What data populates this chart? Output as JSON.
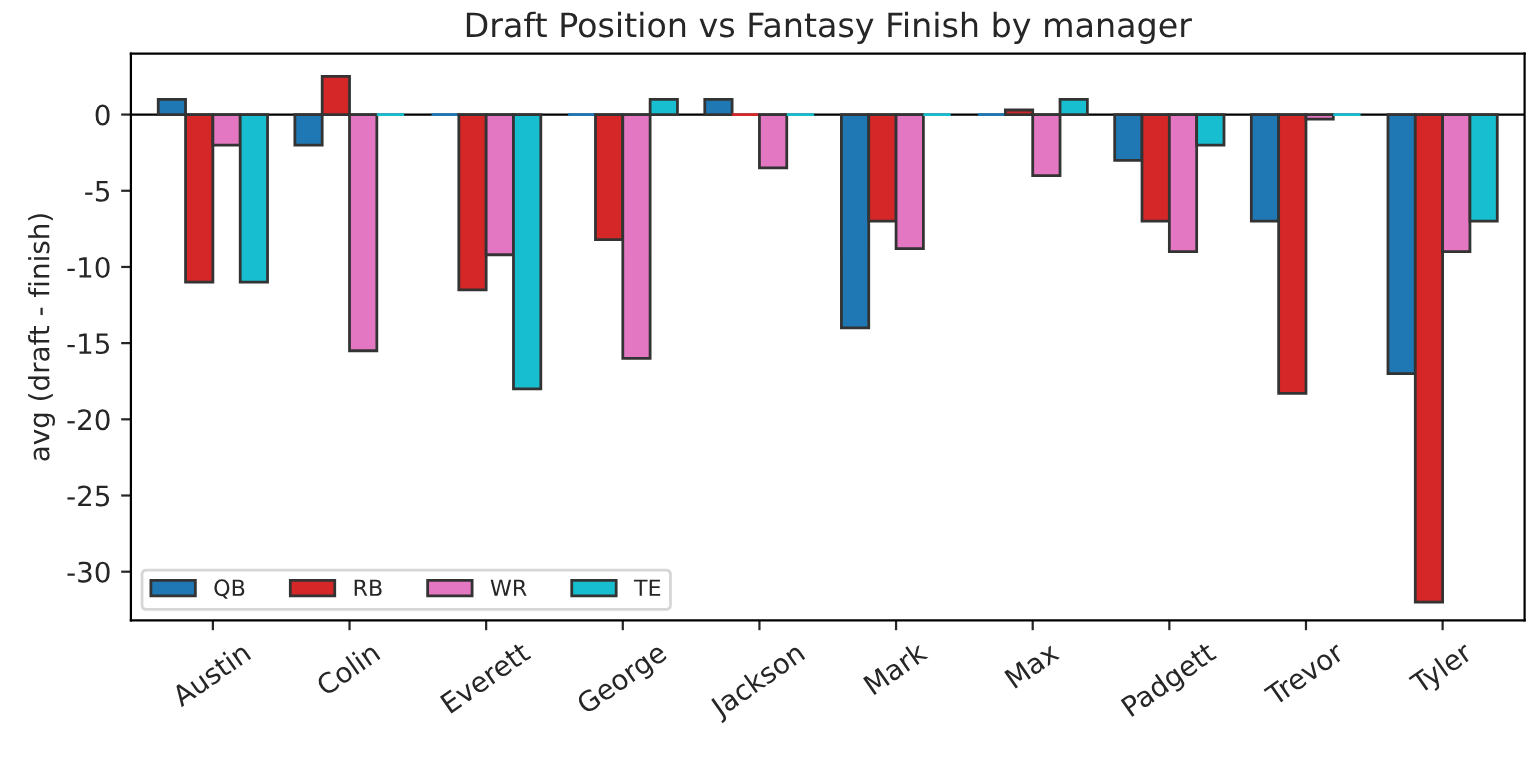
{
  "chart_data": {
    "type": "bar",
    "title": "Draft Position vs Fantasy Finish by manager",
    "ylabel": "avg (draft - finish)",
    "categories": [
      "Austin",
      "Colin",
      "Everett",
      "George",
      "Jackson",
      "Mark",
      "Max",
      "Padgett",
      "Trevor",
      "Tyler"
    ],
    "series": [
      {
        "name": "QB",
        "color": "#1f77b4",
        "values": [
          1,
          -2,
          0,
          0,
          1,
          -14,
          0,
          -3,
          -7,
          -17
        ]
      },
      {
        "name": "RB",
        "color": "#d62728",
        "values": [
          -11,
          2.5,
          -11.5,
          -8.2,
          0,
          -7,
          0.3,
          -7,
          -18.3,
          -32
        ]
      },
      {
        "name": "WR",
        "color": "#e377c2",
        "values": [
          -2,
          -15.5,
          -9.2,
          -16,
          -3.5,
          -8.8,
          -4,
          -9,
          -0.3,
          -9
        ]
      },
      {
        "name": "TE",
        "color": "#17becf",
        "values": [
          -11,
          0,
          -18,
          1,
          0,
          0,
          1,
          -2,
          0,
          -7
        ]
      }
    ],
    "ylim": [
      -33.2,
      4
    ],
    "yticks": [
      -30,
      -25,
      -20,
      -15,
      -10,
      -5,
      0
    ],
    "ref_lines": [
      {
        "axis": "y",
        "value": 0,
        "color": "#000000",
        "line_style": "solid"
      }
    ],
    "grid": false,
    "legend": "bottom left"
  }
}
